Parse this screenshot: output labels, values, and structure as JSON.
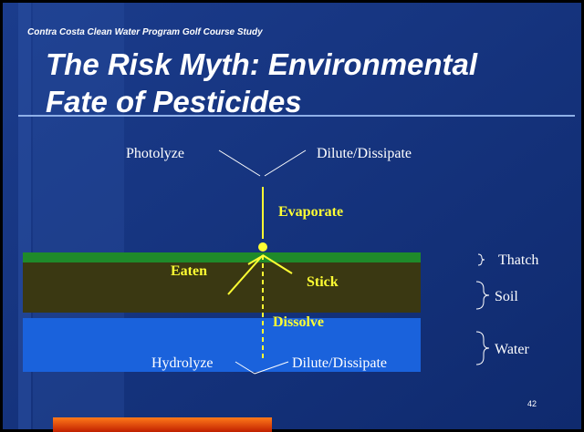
{
  "header": {
    "subtitle": "Contra Costa Clean Water Program Golf Course Study"
  },
  "title": {
    "lines": [
      "The Risk Myth: Environmental",
      "Fate of Pesticides"
    ]
  },
  "diagram": {
    "labels": {
      "photolyze": "Photolyze",
      "dilute_top": "Dilute/Dissipate",
      "evaporate": "Evaporate",
      "eaten": "Eaten",
      "stick": "Stick",
      "dissolve": "Dissolve",
      "hydrolyze": "Hydrolyze",
      "dilute_bottom": "Dilute/Dissipate"
    },
    "layers": {
      "thatch": "Thatch",
      "soil": "Soil",
      "water": "Water"
    }
  },
  "slide_number": 42
}
